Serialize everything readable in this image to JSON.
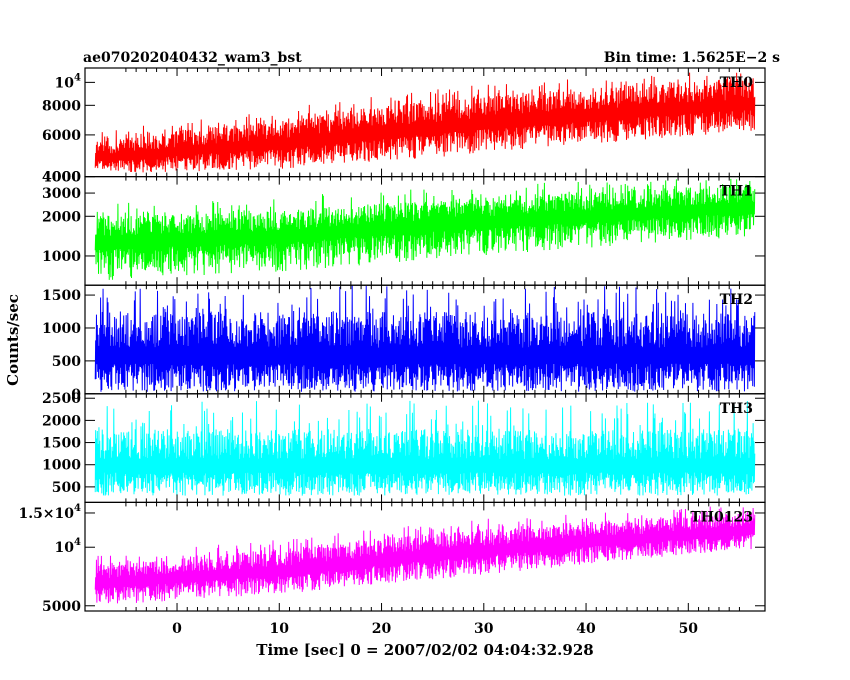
{
  "header": {
    "title": "ae070202040432_wam3_bst",
    "bin_time": "Bin time: 1.5625E−2 s"
  },
  "chart_data": {
    "type": "line",
    "title": "ae070202040432_wam3_bst",
    "xlabel": "Time [sec] 0 = 2007/02/02 04:04:32.928",
    "ylabel": "Counts/sec",
    "xlim": [
      -9,
      57.5
    ],
    "x_data_range": [
      -8,
      56.5
    ],
    "x_ticks": [
      0,
      10,
      20,
      30,
      40,
      50
    ],
    "grid": false,
    "legend": "none",
    "panels": [
      {
        "name": "TH0",
        "color": "#ff0000",
        "ylim": [
          4000,
          11500
        ],
        "log": true,
        "ticks": [
          {
            "value": 4000,
            "label": "4000",
            "exp": ""
          },
          {
            "value": 6000,
            "label": "6000",
            "exp": ""
          },
          {
            "value": 8000,
            "label": "8000",
            "exp": ""
          },
          {
            "value": 10000,
            "label": "10",
            "exp": "4"
          }
        ],
        "envelope": {
          "x": [
            -8,
            10,
            30,
            56.5
          ],
          "low": [
            4100,
            4300,
            5000,
            6200
          ],
          "high": [
            5600,
            7000,
            8800,
            10500
          ],
          "spike": [
            6200,
            7800,
            9800,
            11400
          ]
        }
      },
      {
        "name": "TH1",
        "color": "#00ff00",
        "ylim": [
          600,
          4000
        ],
        "log": true,
        "ticks": [
          {
            "value": 1000,
            "label": "1000",
            "exp": ""
          },
          {
            "value": 2000,
            "label": "2000",
            "exp": ""
          },
          {
            "value": 3000,
            "label": "3000",
            "exp": ""
          },
          {
            "value": 4000,
            "label": "4000",
            "exp": ""
          }
        ],
        "envelope": {
          "x": [
            -8,
            10,
            30,
            56.5
          ],
          "low": [
            650,
            750,
            1000,
            1400
          ],
          "high": [
            2000,
            2200,
            2800,
            3500
          ],
          "spike": [
            2500,
            2800,
            3500,
            4000
          ]
        }
      },
      {
        "name": "TH2",
        "color": "#0000ff",
        "ylim": [
          0,
          1650
        ],
        "log": false,
        "ticks": [
          {
            "value": 0,
            "label": "0",
            "exp": ""
          },
          {
            "value": 500,
            "label": "500",
            "exp": ""
          },
          {
            "value": 1000,
            "label": "1000",
            "exp": ""
          },
          {
            "value": 1500,
            "label": "1500",
            "exp": ""
          }
        ],
        "envelope": {
          "x": [
            -8,
            56.5
          ],
          "low": [
            30,
            30
          ],
          "high": [
            1250,
            1250
          ],
          "spike": [
            1650,
            1650
          ]
        }
      },
      {
        "name": "TH3",
        "color": "#00ffff",
        "ylim": [
          150,
          2600
        ],
        "log": false,
        "ticks": [
          {
            "value": 500,
            "label": "500",
            "exp": ""
          },
          {
            "value": 1000,
            "label": "1000",
            "exp": ""
          },
          {
            "value": 1500,
            "label": "1500",
            "exp": ""
          },
          {
            "value": 2000,
            "label": "2000",
            "exp": ""
          },
          {
            "value": 2500,
            "label": "2500",
            "exp": ""
          }
        ],
        "envelope": {
          "x": [
            -8,
            56.5
          ],
          "low": [
            300,
            300
          ],
          "high": [
            1800,
            1800
          ],
          "spike": [
            2450,
            2450
          ]
        }
      },
      {
        "name": "TH0123",
        "color": "#ff00ff",
        "ylim": [
          4700,
          17000
        ],
        "log": true,
        "ticks": [
          {
            "value": 5000,
            "label": "5000",
            "exp": ""
          },
          {
            "value": 10000,
            "label": "10",
            "exp": "4"
          },
          {
            "value": 15000,
            "label": "1.5×10",
            "exp": "4"
          }
        ],
        "envelope": {
          "x": [
            -8,
            10,
            30,
            56.5
          ],
          "low": [
            5000,
            5700,
            7200,
            9800
          ],
          "high": [
            8200,
            9800,
            12500,
            15200
          ],
          "spike": [
            9000,
            11000,
            14000,
            16800
          ]
        }
      }
    ]
  }
}
